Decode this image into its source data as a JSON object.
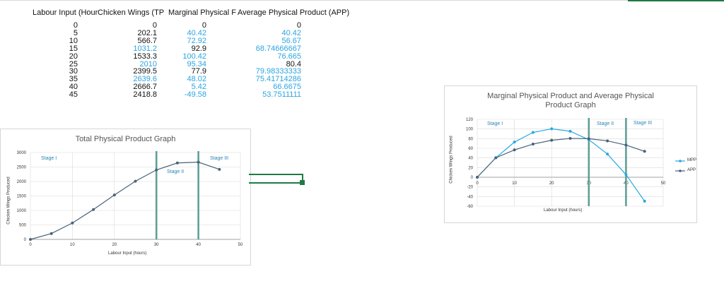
{
  "table": {
    "headers": [
      "Labour Input (Hour",
      "Chicken Wings (TP",
      "Marginal Physical F",
      "Average Physical Product (APP)"
    ],
    "rows": [
      [
        "0",
        "0",
        "0",
        "0"
      ],
      [
        "5",
        "202.1",
        "40.42",
        "40.42"
      ],
      [
        "10",
        "566.7",
        "72.92",
        "56.67"
      ],
      [
        "15",
        "1031.2",
        "92.9",
        "68.74666667"
      ],
      [
        "20",
        "1533.3",
        "100.42",
        "76.665"
      ],
      [
        "25",
        "2010",
        "95.34",
        "80.4"
      ],
      [
        "30",
        "2399.5",
        "77.9",
        "79.98333333"
      ],
      [
        "35",
        "2639.6",
        "48.02",
        "75.41714286"
      ],
      [
        "40",
        "2666.7",
        "5.42",
        "66.6675"
      ],
      [
        "45",
        "2418.8",
        "-49.58",
        "53.7511111"
      ]
    ],
    "blue_cells": [
      [
        3,
        1
      ],
      [
        5,
        1
      ],
      [
        7,
        1
      ],
      [
        1,
        2
      ],
      [
        2,
        2
      ],
      [
        4,
        2
      ],
      [
        5,
        2
      ],
      [
        7,
        2
      ],
      [
        8,
        2
      ],
      [
        9,
        2
      ],
      [
        1,
        3
      ],
      [
        2,
        3
      ],
      [
        3,
        3
      ],
      [
        4,
        3
      ],
      [
        6,
        3
      ],
      [
        7,
        3
      ],
      [
        8,
        3
      ],
      [
        9,
        3
      ]
    ]
  },
  "chart_data": [
    {
      "type": "line",
      "title": "Total Physical Product Graph",
      "xlabel": "Labour Input (hours)",
      "ylabel": "Chicken Wings Produced",
      "x": [
        0,
        5,
        10,
        15,
        20,
        25,
        30,
        35,
        40,
        45
      ],
      "series": [
        {
          "name": "TPP",
          "values": [
            0,
            202.1,
            566.7,
            1031.2,
            1533.3,
            2010,
            2399.5,
            2639.6,
            2666.7,
            2418.8
          ],
          "color": "#4a6278"
        }
      ],
      "xlim": [
        0,
        50
      ],
      "ylim": [
        0,
        3000
      ],
      "xticks": [
        0,
        10,
        20,
        30,
        40,
        50
      ],
      "yticks": [
        0,
        500,
        1000,
        1500,
        2000,
        2500,
        3000
      ],
      "ytick_labels": [
        "0",
        "500",
        "1000",
        "1500",
        "2000",
        "2500",
        "3000"
      ],
      "stage_lines": [
        30,
        40
      ],
      "stage_labels": [
        "Stage I",
        "Stage II",
        "Stage III"
      ],
      "grid": true
    },
    {
      "type": "line",
      "title": "Marginal Physical Product and Average Physical Product Graph",
      "xlabel": "Labour Input (hours)",
      "ylabel": "Chicken Wings Produced",
      "x": [
        0,
        5,
        10,
        15,
        20,
        25,
        30,
        35,
        40,
        45
      ],
      "series": [
        {
          "name": "MPP",
          "values": [
            0,
            40.42,
            72.92,
            92.9,
            100.42,
            95.34,
            77.9,
            48.02,
            5.42,
            -49.58
          ],
          "color": "#29a9e1"
        },
        {
          "name": "APP",
          "values": [
            0,
            40.42,
            56.67,
            68.74666667,
            76.665,
            80.4,
            79.98333333,
            75.41714286,
            66.6675,
            53.7511111
          ],
          "color": "#4a6278"
        }
      ],
      "xlim": [
        0,
        50
      ],
      "ylim": [
        -60,
        120
      ],
      "xticks": [
        0,
        10,
        20,
        30,
        40,
        50
      ],
      "yticks": [
        -60,
        -40,
        -20,
        0,
        20,
        40,
        60,
        80,
        100,
        120
      ],
      "ytick_labels": [
        "-60",
        "-40",
        "-20",
        "0",
        "20",
        "40",
        "60",
        "80",
        "100",
        "120"
      ],
      "stage_lines": [
        30,
        40
      ],
      "stage_labels": [
        "Stage I",
        "Stage II",
        "Stage III"
      ],
      "legend": [
        "MPP",
        "APP"
      ],
      "grid": true
    }
  ],
  "colors": {
    "stage_line": "#5a9e94",
    "grid": "#d9d9d9",
    "accent_green": "#1e7b45",
    "blue_text": "#2aa5e0"
  }
}
